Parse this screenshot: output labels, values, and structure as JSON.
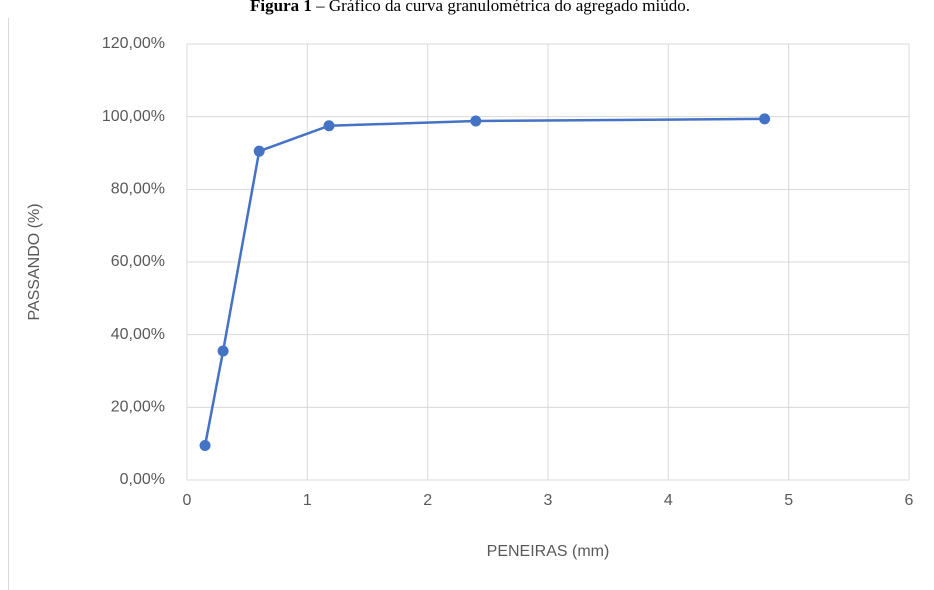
{
  "chart_data": {
    "type": "line",
    "figure_label": "Figura 1",
    "title": "– Gráfico da curva granulométrica do agregado miúdo.",
    "x_label": "PENEIRAS (mm)",
    "y_label": "PASSANDO (%)",
    "x": [
      0.15,
      0.3,
      0.6,
      1.18,
      2.4,
      4.8
    ],
    "series": [
      {
        "name": null,
        "color": "#4472c4",
        "values": [
          9.5,
          35.5,
          90.5,
          97.5,
          98.8,
          99.4
        ]
      }
    ],
    "xlim": [
      0,
      6
    ],
    "xticks": [
      0,
      1,
      2,
      3,
      4,
      5,
      6
    ],
    "ylim": [
      0,
      120
    ],
    "yticks": [
      {
        "value": 0,
        "label": "0,00%"
      },
      {
        "value": 20,
        "label": "20,00%"
      },
      {
        "value": 40,
        "label": "40,00%"
      },
      {
        "value": 60,
        "label": "60,00%"
      },
      {
        "value": 80,
        "label": "80,00%"
      },
      {
        "value": 100,
        "label": "100,00%"
      },
      {
        "value": 120,
        "label": "120,00%"
      }
    ],
    "grid": true,
    "markers": true
  }
}
